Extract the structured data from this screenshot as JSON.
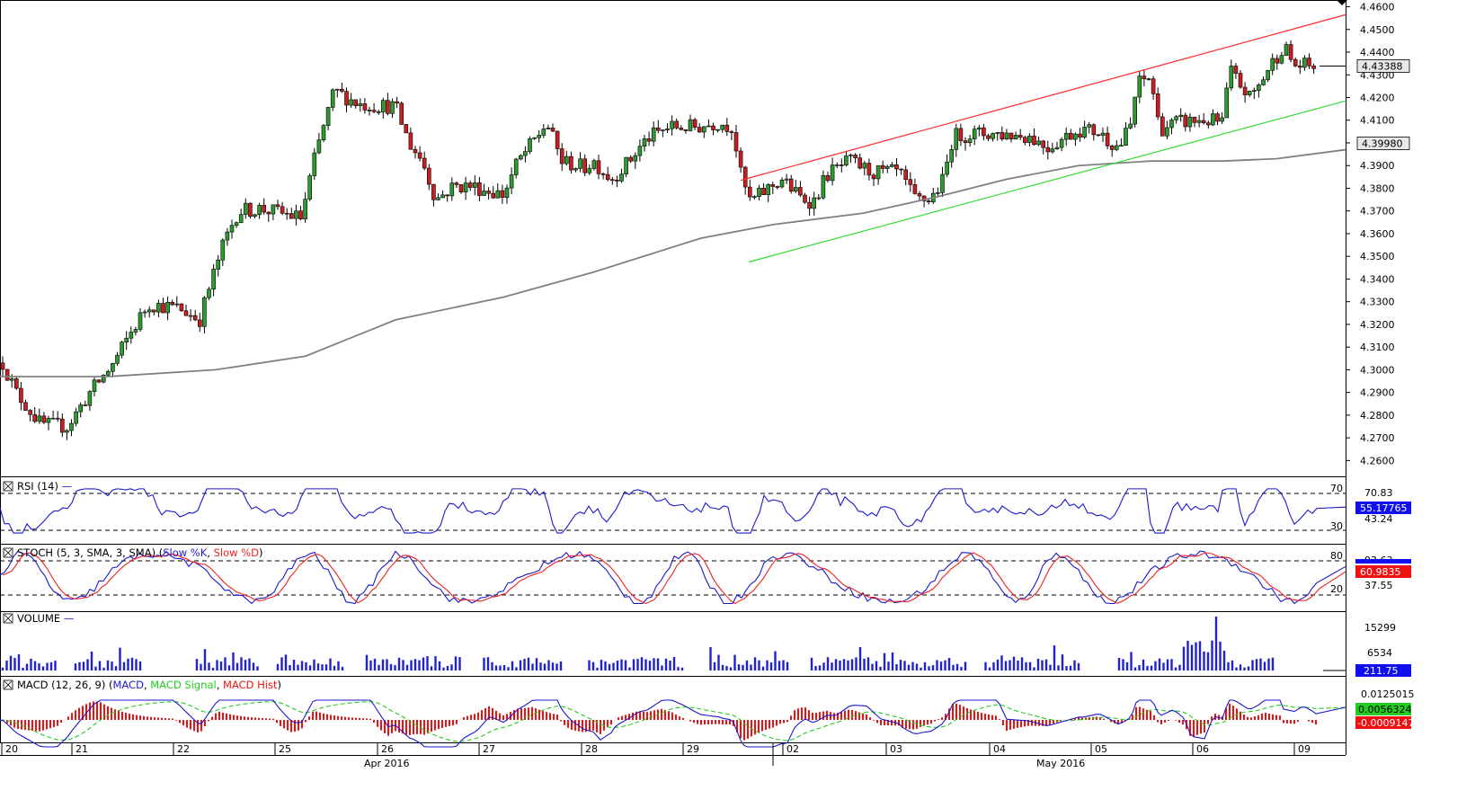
{
  "chart_data": {
    "type": "candlestick",
    "instrument_panel": {
      "price_axis_ticks": [
        "4.4600",
        "4.4500",
        "4.4400",
        "4.4300",
        "4.4200",
        "4.4100",
        "4.4000",
        "4.3900",
        "4.3800",
        "4.3700",
        "4.3600",
        "4.3500",
        "4.3400",
        "4.3300",
        "4.3200",
        "4.3100",
        "4.3000",
        "4.2900",
        "4.2800",
        "4.2700",
        "4.2600"
      ],
      "current_price_label": "4.43388",
      "moving_average_label": "4.39980",
      "ylim": [
        4.255,
        4.461
      ]
    },
    "indicators": {
      "rsi": {
        "label": "RSI (14)",
        "levels": [
          "70",
          "30"
        ],
        "scale_labels": [
          "70.83",
          "43.24"
        ],
        "value_label": "55.17765"
      },
      "stoch": {
        "label_prefix": "STOCH (5, 3, SMA, 3, SMA)",
        "k_label": "Slow %K",
        "d_label": "Slow %D",
        "levels": [
          "80",
          "20"
        ],
        "scale_labels": [
          "93.63",
          "37.55"
        ],
        "value_label": "60.9835"
      },
      "volume": {
        "label": "VOLUME",
        "scale_labels": [
          "15299",
          "6534"
        ],
        "value_label": "211.75"
      },
      "macd": {
        "label_prefix": "MACD (12, 26, 9)",
        "macd_label": "MACD",
        "signal_label": "MACD Signal",
        "hist_label": "MACD Hist",
        "scale_labels": [
          "0.0125015",
          "0.0056324",
          "-0.0009147"
        ]
      }
    },
    "x_axis": {
      "day_ticks": [
        "20",
        "21",
        "22",
        "25",
        "26",
        "27",
        "28",
        "29",
        "02",
        "03",
        "04",
        "05",
        "06",
        "09"
      ],
      "month_labels": [
        "Apr 2016",
        "May 2016"
      ]
    },
    "colors": {
      "up_candle": "#2f9a2f",
      "down_candle": "#c82020",
      "moving_average": "#808080",
      "upper_channel": "#ff2a2a",
      "lower_channel": "#33dd33",
      "rsi_line": "#1a1acc",
      "stoch_k": "#1a1acc",
      "stoch_d": "#ee2222",
      "volume_bar": "#2222cc",
      "macd_line": "#1a1acc",
      "signal_line": "#22cc22",
      "hist": "#ee1111",
      "highlight_value_bg": "#1010ee"
    }
  }
}
